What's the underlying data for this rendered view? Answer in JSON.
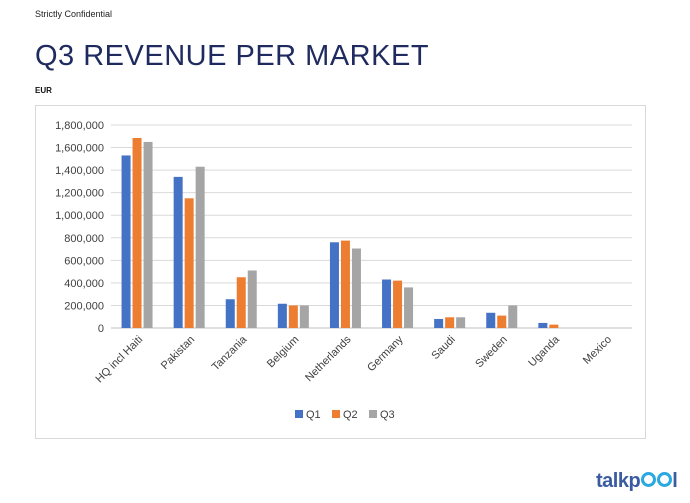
{
  "header": {
    "confidential": "Strictly Confidential",
    "title": "Q3 REVENUE PER MARKET",
    "unit": "EUR"
  },
  "logo": {
    "text_start": "talkp",
    "text_end": "l",
    "color": "#3a5ba0",
    "accent_color": "#29a9e0"
  },
  "chart_data": {
    "type": "bar",
    "categories": [
      "HQ incl Haiti",
      "Pakistan",
      "Tanzania",
      "Belgium",
      "Netherlands",
      "Germany",
      "Saudi",
      "Sweden",
      "Uganda",
      "Mexico"
    ],
    "series": [
      {
        "name": "Q1",
        "color": "#4472c4",
        "values": [
          1530000,
          1340000,
          255000,
          215000,
          760000,
          430000,
          80000,
          135000,
          45000,
          0
        ]
      },
      {
        "name": "Q2",
        "color": "#ed7d31",
        "values": [
          1685000,
          1150000,
          450000,
          200000,
          775000,
          420000,
          95000,
          110000,
          30000,
          0
        ]
      },
      {
        "name": "Q3",
        "color": "#a5a5a5",
        "values": [
          1650000,
          1430000,
          510000,
          200000,
          705000,
          360000,
          95000,
          200000,
          0,
          0
        ]
      }
    ],
    "ylim": [
      0,
      1800000
    ],
    "yticks": [
      0,
      200000,
      400000,
      600000,
      800000,
      1000000,
      1200000,
      1400000,
      1600000,
      1800000
    ],
    "ytick_labels": [
      "0",
      "200,000",
      "400,000",
      "600,000",
      "800,000",
      "1,000,000",
      "1,200,000",
      "1,400,000",
      "1,600,000",
      "1,800,000"
    ],
    "grid": true,
    "legend_position": "bottom"
  }
}
